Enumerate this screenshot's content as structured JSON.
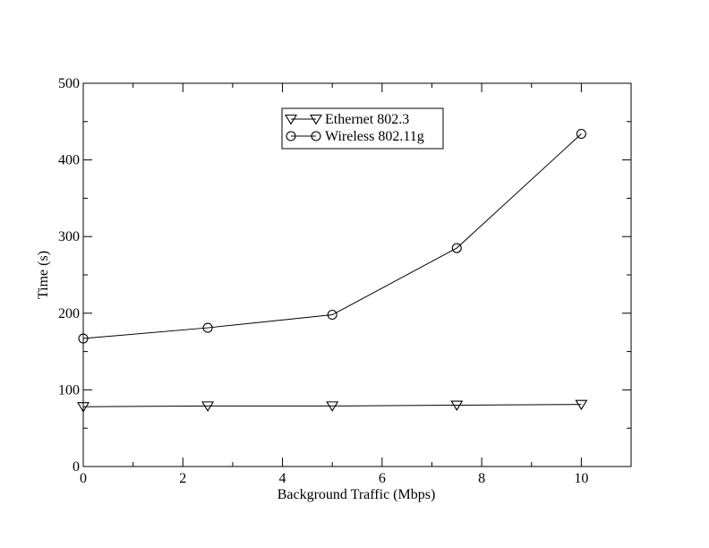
{
  "chart_data": {
    "type": "line",
    "title": "",
    "xlabel": "Background Traffic (Mbps)",
    "ylabel": "Time (s)",
    "xlim": [
      0,
      11
    ],
    "ylim": [
      0,
      500
    ],
    "x_major_ticks": [
      0,
      2,
      4,
      6,
      8,
      10
    ],
    "x_minor_ticks": [
      1,
      3,
      5,
      7,
      9
    ],
    "y_major_ticks": [
      0,
      100,
      200,
      300,
      400,
      500
    ],
    "y_minor_ticks": [
      50,
      150,
      250,
      350,
      450
    ],
    "grid": false,
    "legend_position": "top-center",
    "series": [
      {
        "name": "Ethernet 802.3",
        "marker": "triangle-down",
        "color": "#000000",
        "x": [
          0,
          2.5,
          5,
          7.5,
          10
        ],
        "y": [
          78,
          79,
          79,
          80,
          81
        ]
      },
      {
        "name": "Wireless 802.11g",
        "marker": "circle",
        "color": "#000000",
        "x": [
          0,
          2.5,
          5,
          7.5,
          10
        ],
        "y": [
          167,
          181,
          198,
          285,
          434
        ]
      }
    ]
  }
}
